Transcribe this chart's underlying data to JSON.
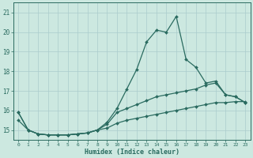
{
  "xlabel": "Humidex (Indice chaleur)",
  "ylabel": "",
  "bg_color": "#cce8e0",
  "grid_color": "#aacccc",
  "line_color": "#2a6b60",
  "xlim": [
    -0.5,
    23.5
  ],
  "ylim": [
    14.5,
    21.5
  ],
  "yticks": [
    15,
    16,
    17,
    18,
    19,
    20,
    21
  ],
  "ytick_labels": [
    "15",
    "16",
    "17",
    "18",
    "19",
    "20",
    "21"
  ],
  "xticks": [
    0,
    1,
    2,
    3,
    4,
    5,
    6,
    7,
    8,
    9,
    10,
    11,
    12,
    13,
    14,
    15,
    16,
    17,
    18,
    19,
    20,
    21,
    22,
    23
  ],
  "line1_y": [
    15.9,
    15.0,
    14.8,
    14.75,
    14.75,
    14.75,
    14.8,
    14.85,
    15.0,
    15.4,
    16.1,
    17.1,
    18.1,
    19.5,
    20.1,
    20.0,
    20.8,
    18.6,
    18.2,
    17.4,
    17.5,
    16.8,
    16.7,
    16.4
  ],
  "line2_y": [
    15.9,
    15.0,
    14.8,
    14.75,
    14.75,
    14.75,
    14.8,
    14.85,
    15.0,
    15.3,
    15.9,
    16.1,
    16.3,
    16.5,
    16.7,
    16.8,
    16.9,
    17.0,
    17.1,
    17.3,
    17.4,
    16.8,
    16.7,
    16.4
  ],
  "line3_y": [
    15.5,
    15.0,
    14.8,
    14.75,
    14.75,
    14.75,
    14.8,
    14.85,
    15.0,
    15.1,
    15.35,
    15.5,
    15.6,
    15.7,
    15.8,
    15.9,
    16.0,
    16.1,
    16.2,
    16.3,
    16.4,
    16.4,
    16.45,
    16.45
  ]
}
